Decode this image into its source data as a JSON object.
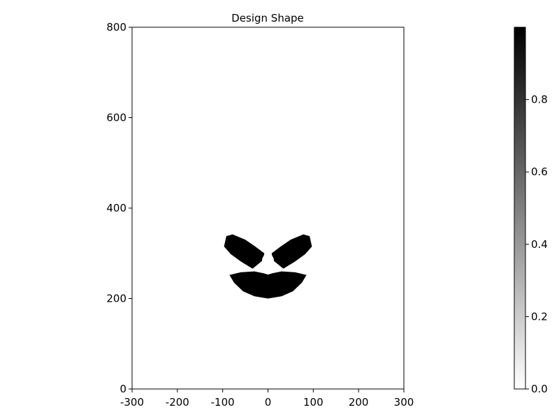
{
  "chart_data": {
    "type": "heatmap",
    "title": "Design Shape",
    "xlabel": "",
    "ylabel": "",
    "xlim": [
      -300,
      300
    ],
    "ylim": [
      0,
      800
    ],
    "x_ticks": [
      -300,
      -200,
      -100,
      0,
      100,
      200,
      300
    ],
    "y_ticks": [
      0,
      200,
      400,
      600,
      800
    ],
    "colorbar": {
      "range": [
        0.0,
        1.0
      ],
      "ticks": [
        0.0,
        0.2,
        0.4,
        0.6,
        0.8
      ],
      "tick_labels": [
        "0.0",
        "0.2",
        "0.4",
        "0.6",
        "0.8"
      ],
      "colormap": "gray_r",
      "low_color": "#ffffff",
      "high_color": "#000000"
    },
    "shape_regions": [
      {
        "name": "upper-left-arm",
        "value": 1.0,
        "outline": [
          [
            -97,
            315
          ],
          [
            -92,
            338
          ],
          [
            -78,
            342
          ],
          [
            -50,
            330
          ],
          [
            -28,
            315
          ],
          [
            -8,
            300
          ],
          [
            -12,
            284
          ],
          [
            -34,
            266
          ],
          [
            -60,
            282
          ],
          [
            -82,
            298
          ]
        ]
      },
      {
        "name": "upper-right-arm",
        "value": 1.0,
        "outline": [
          [
            97,
            315
          ],
          [
            92,
            338
          ],
          [
            78,
            342
          ],
          [
            50,
            330
          ],
          [
            28,
            315
          ],
          [
            8,
            300
          ],
          [
            12,
            284
          ],
          [
            34,
            266
          ],
          [
            60,
            282
          ],
          [
            82,
            298
          ]
        ]
      },
      {
        "name": "lower-crescent",
        "value": 1.0,
        "outline": [
          [
            -85,
            252
          ],
          [
            -60,
            258
          ],
          [
            -30,
            260
          ],
          [
            -10,
            256
          ],
          [
            0,
            253
          ],
          [
            10,
            256
          ],
          [
            30,
            260
          ],
          [
            60,
            258
          ],
          [
            85,
            252
          ],
          [
            75,
            235
          ],
          [
            55,
            216
          ],
          [
            30,
            205
          ],
          [
            0,
            200
          ],
          [
            -30,
            205
          ],
          [
            -55,
            216
          ],
          [
            -75,
            235
          ]
        ]
      }
    ],
    "holes": [
      {
        "name": "center-hole",
        "value": 0.0,
        "center": [
          0,
          285
        ],
        "radius": 13
      }
    ]
  }
}
